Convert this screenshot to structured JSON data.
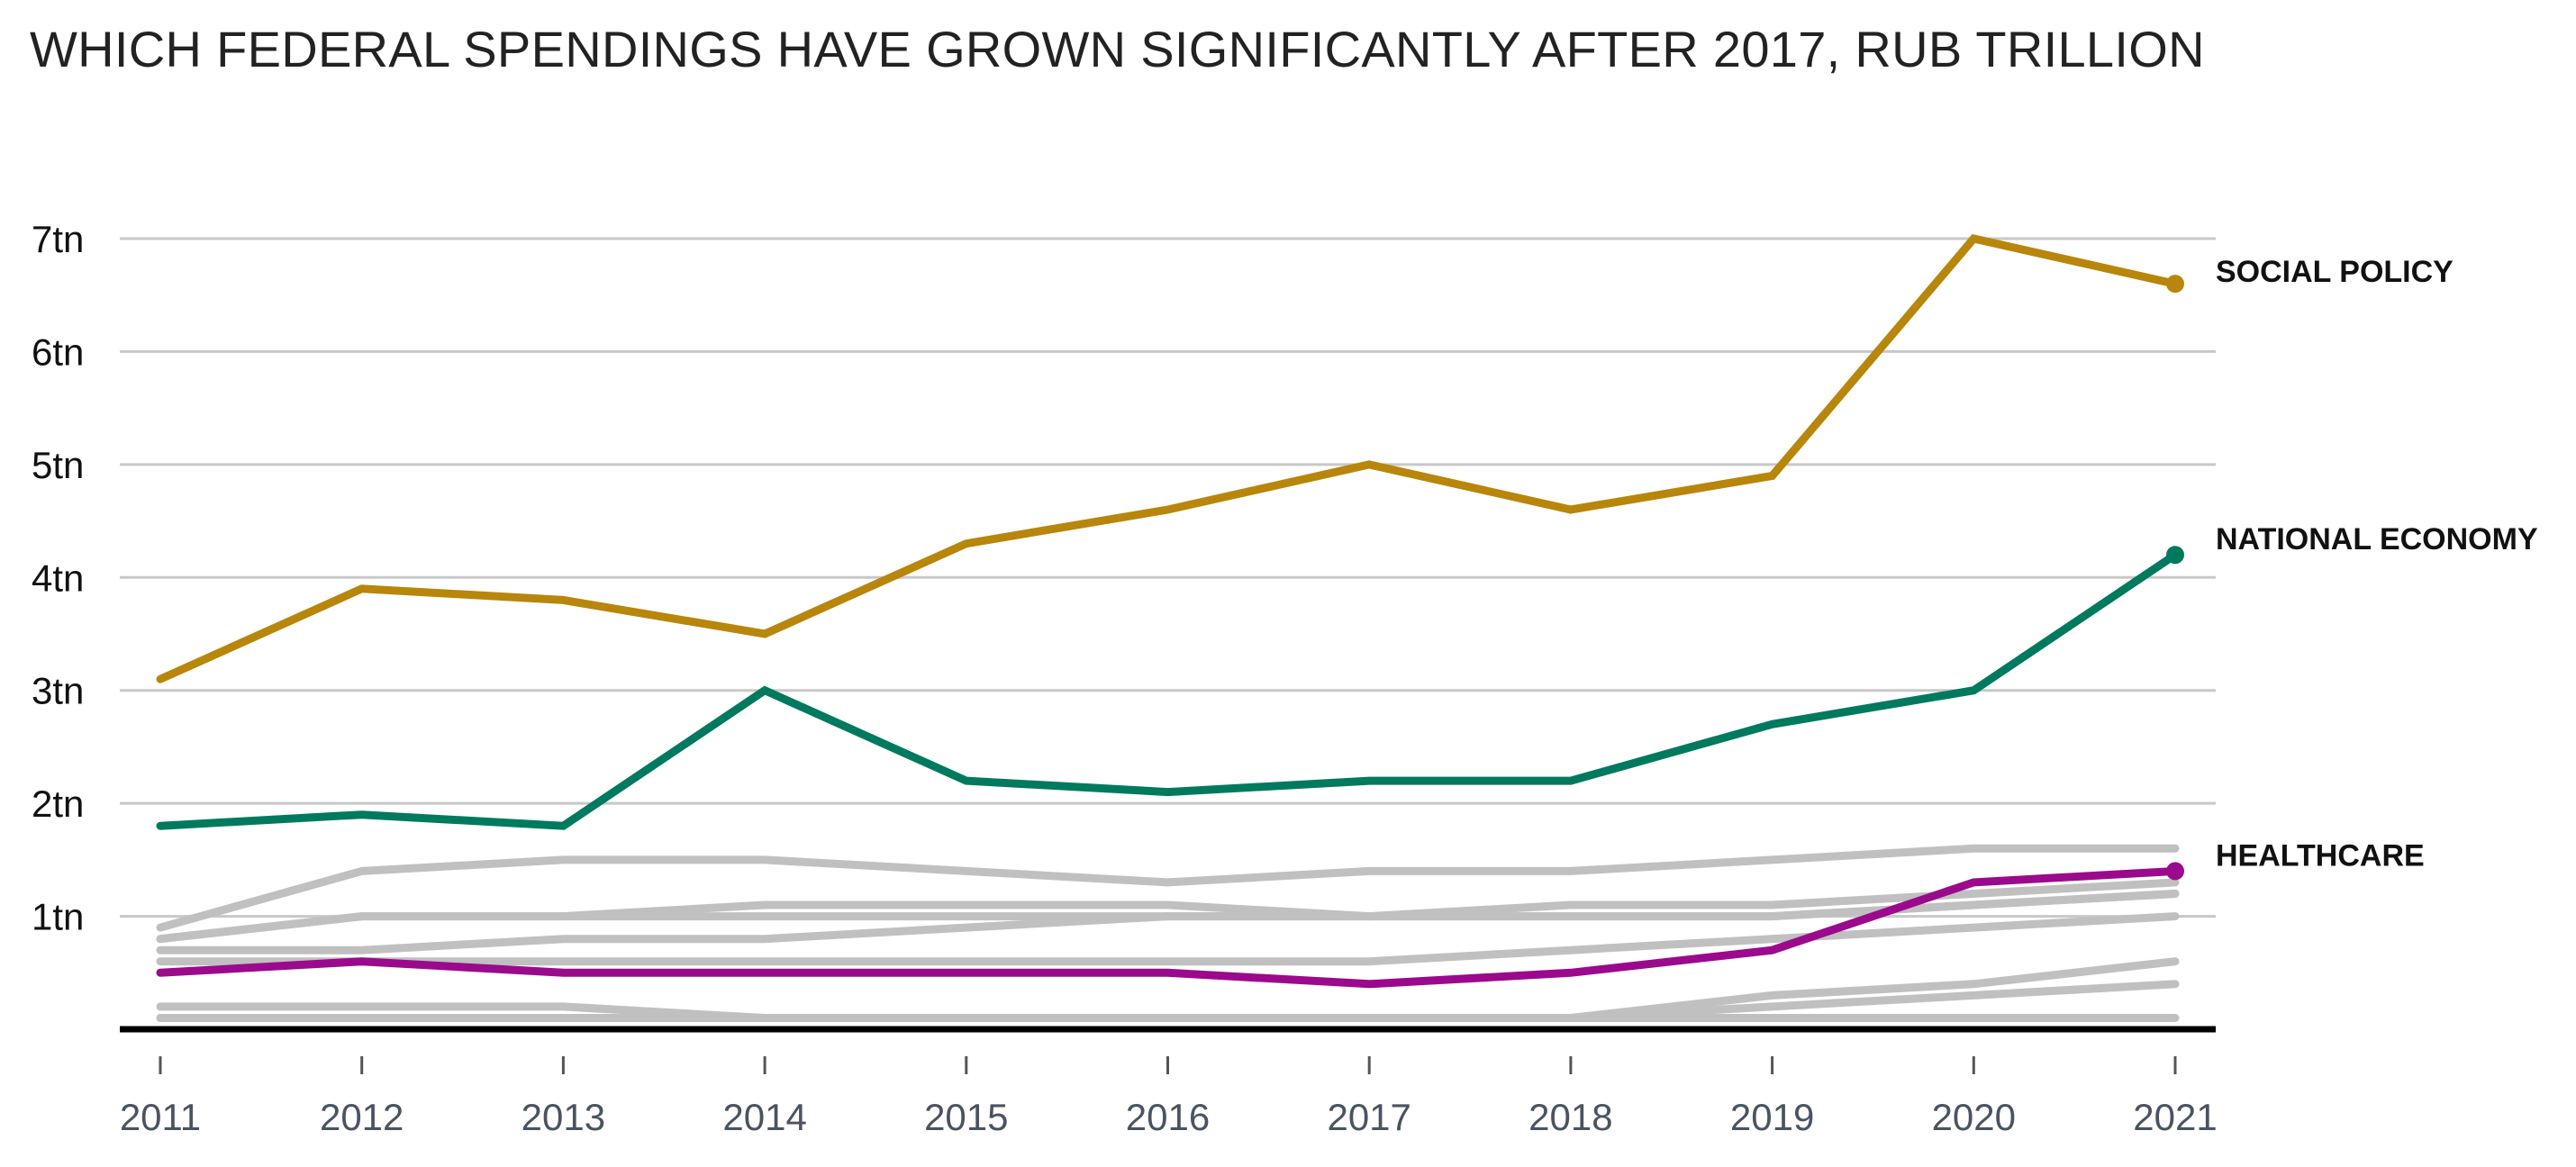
{
  "chart_data": {
    "type": "line",
    "title": "WHICH FEDERAL SPENDINGS HAVE GROWN SIGNIFICANTLY AFTER 2017, RUB TRILLION",
    "xlabel": "",
    "ylabel": "",
    "x": [
      "2011",
      "2012",
      "2013",
      "2014",
      "2015",
      "2016",
      "2017",
      "2018",
      "2019",
      "2020",
      "2021"
    ],
    "ylim": [
      0,
      7
    ],
    "yticks": [
      {
        "value": 1,
        "label": "1tn"
      },
      {
        "value": 2,
        "label": "2tn"
      },
      {
        "value": 3,
        "label": "3tn"
      },
      {
        "value": 4,
        "label": "4tn"
      },
      {
        "value": 5,
        "label": "5tn"
      },
      {
        "value": 6,
        "label": "6tn"
      },
      {
        "value": 7,
        "label": "7tn"
      }
    ],
    "grid": true,
    "legend": "direct labels at line ends",
    "highlighted_series": [
      {
        "name": "SOCIAL POLICY",
        "color": "#b8860b",
        "values": [
          3.1,
          3.9,
          3.8,
          3.5,
          4.3,
          4.6,
          5.0,
          4.6,
          4.9,
          7.0,
          6.6
        ]
      },
      {
        "name": "NATIONAL ECONOMY",
        "color": "#007a5e",
        "values": [
          1.8,
          1.9,
          1.8,
          3.0,
          2.2,
          2.1,
          2.2,
          2.2,
          2.7,
          3.0,
          4.2
        ]
      },
      {
        "name": "HEALTHCARE",
        "color": "#9b0a8c",
        "values": [
          0.5,
          0.6,
          0.5,
          0.5,
          0.5,
          0.5,
          0.4,
          0.5,
          0.7,
          1.3,
          1.4
        ]
      }
    ],
    "background_series_color": "#c0c0c0",
    "background_series": [
      {
        "values": [
          0.9,
          1.4,
          1.5,
          1.5,
          1.4,
          1.3,
          1.4,
          1.4,
          1.5,
          1.6,
          1.6
        ]
      },
      {
        "values": [
          0.8,
          1.0,
          1.0,
          1.1,
          1.1,
          1.1,
          1.0,
          1.1,
          1.1,
          1.2,
          1.3
        ]
      },
      {
        "values": [
          0.8,
          1.0,
          1.0,
          1.0,
          1.0,
          1.0,
          1.0,
          1.0,
          1.0,
          1.1,
          1.2
        ]
      },
      {
        "values": [
          0.7,
          0.7,
          0.8,
          0.8,
          0.9,
          1.0,
          1.0,
          1.0,
          1.0,
          1.1,
          1.2
        ]
      },
      {
        "values": [
          0.6,
          0.6,
          0.6,
          0.6,
          0.6,
          0.6,
          0.6,
          0.7,
          0.8,
          0.9,
          1.0
        ]
      },
      {
        "values": [
          0.2,
          0.2,
          0.2,
          0.1,
          0.1,
          0.1,
          0.1,
          0.1,
          0.3,
          0.4,
          0.6
        ]
      },
      {
        "values": [
          0.1,
          0.1,
          0.1,
          0.1,
          0.1,
          0.1,
          0.1,
          0.1,
          0.2,
          0.3,
          0.4
        ]
      },
      {
        "values": [
          0.1,
          0.1,
          0.1,
          0.1,
          0.1,
          0.1,
          0.1,
          0.1,
          0.1,
          0.1,
          0.1
        ]
      }
    ]
  }
}
